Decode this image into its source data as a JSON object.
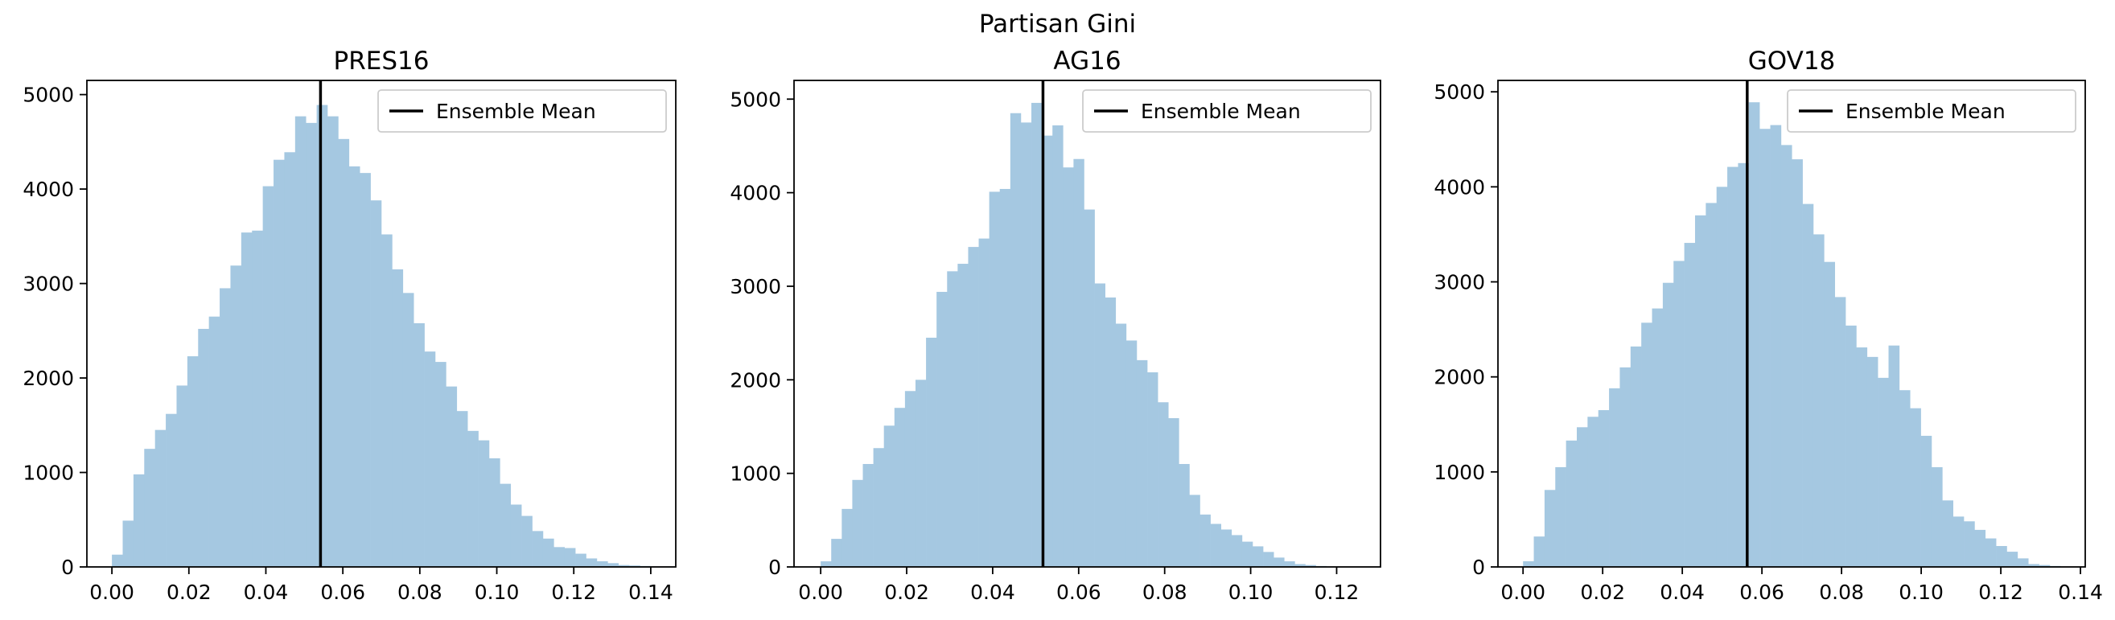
{
  "figure": {
    "suptitle": "Partisan Gini"
  },
  "chart_data": [
    {
      "type": "bar",
      "title": "PRES16",
      "xlabel": "",
      "ylabel": "",
      "xlim": [
        -0.0065,
        0.1465
      ],
      "ylim": [
        0,
        5150
      ],
      "xticks": [
        0.0,
        0.02,
        0.04,
        0.06,
        0.08,
        0.1,
        0.12,
        0.14
      ],
      "xtick_labels": [
        "0.00",
        "0.02",
        "0.04",
        "0.06",
        "0.08",
        "0.10",
        "0.12",
        "0.14"
      ],
      "yticks": [
        0,
        1000,
        2000,
        3000,
        4000,
        5000
      ],
      "ytick_labels": [
        "0",
        "1000",
        "2000",
        "3000",
        "4000",
        "5000"
      ],
      "bin_start": 0.0,
      "bin_width": 0.0028,
      "series": [
        {
          "name": "",
          "values": [
            130,
            490,
            980,
            1250,
            1450,
            1620,
            1920,
            2230,
            2520,
            2650,
            2950,
            3190,
            3540,
            3560,
            4030,
            4310,
            4390,
            4770,
            4700,
            4890,
            4770,
            4530,
            4240,
            4170,
            3880,
            3520,
            3150,
            2900,
            2580,
            2280,
            2170,
            1910,
            1650,
            1440,
            1340,
            1150,
            880,
            660,
            540,
            380,
            300,
            210,
            200,
            140,
            90,
            60,
            40,
            20,
            15,
            10,
            5,
            5
          ]
        }
      ],
      "mean_line": {
        "x": 0.0542,
        "label": "Ensemble Mean",
        "color": "#000000"
      },
      "grid": false,
      "legend": "top-right"
    },
    {
      "type": "bar",
      "title": "AG16",
      "xlabel": "",
      "ylabel": "",
      "xlim": [
        -0.0062,
        0.1302
      ],
      "ylim": [
        0,
        5200
      ],
      "xticks": [
        0.0,
        0.02,
        0.04,
        0.06,
        0.08,
        0.1,
        0.12
      ],
      "xtick_labels": [
        "0.00",
        "0.02",
        "0.04",
        "0.06",
        "0.08",
        "0.10",
        "0.12"
      ],
      "yticks": [
        0,
        1000,
        2000,
        3000,
        4000,
        5000
      ],
      "ytick_labels": [
        "0",
        "1000",
        "2000",
        "3000",
        "4000",
        "5000"
      ],
      "bin_start": 0.0,
      "bin_width": 0.00245,
      "series": [
        {
          "name": "",
          "values": [
            60,
            300,
            620,
            930,
            1100,
            1270,
            1510,
            1700,
            1880,
            2000,
            2450,
            2940,
            3160,
            3240,
            3420,
            3510,
            4010,
            4040,
            4850,
            4750,
            4960,
            4610,
            4720,
            4270,
            4360,
            3820,
            3030,
            2880,
            2600,
            2420,
            2210,
            2080,
            1760,
            1590,
            1100,
            770,
            560,
            460,
            400,
            340,
            270,
            220,
            160,
            100,
            60,
            30,
            20,
            10
          ]
        }
      ],
      "mean_line": {
        "x": 0.0517,
        "label": "Ensemble Mean",
        "color": "#000000"
      },
      "grid": false,
      "legend": "top-right"
    },
    {
      "type": "bar",
      "title": "GOV18",
      "xlabel": "",
      "ylabel": "",
      "xlim": [
        -0.0063,
        0.1412
      ],
      "ylim": [
        0,
        5120
      ],
      "xticks": [
        0.0,
        0.02,
        0.04,
        0.06,
        0.08,
        0.1,
        0.12,
        0.14
      ],
      "xtick_labels": [
        "0.00",
        "0.02",
        "0.04",
        "0.06",
        "0.08",
        "0.10",
        "0.12",
        "0.14"
      ],
      "yticks": [
        0,
        1000,
        2000,
        3000,
        4000,
        5000
      ],
      "ytick_labels": [
        "0",
        "1000",
        "2000",
        "3000",
        "4000",
        "5000"
      ],
      "bin_start": 0.0,
      "bin_width": 0.0027,
      "series": [
        {
          "name": "",
          "values": [
            60,
            320,
            810,
            1050,
            1330,
            1470,
            1580,
            1650,
            1880,
            2100,
            2320,
            2570,
            2720,
            2990,
            3220,
            3410,
            3700,
            3830,
            4000,
            4210,
            4250,
            4890,
            4610,
            4650,
            4440,
            4290,
            3820,
            3500,
            3210,
            2840,
            2540,
            2310,
            2210,
            1990,
            2330,
            1860,
            1670,
            1380,
            1050,
            700,
            530,
            480,
            390,
            300,
            220,
            160,
            90,
            30,
            20,
            10
          ]
        }
      ],
      "mean_line": {
        "x": 0.0563,
        "label": "Ensemble Mean",
        "color": "#000000"
      },
      "grid": false,
      "legend": "top-right"
    }
  ],
  "colors": {
    "bar": "#a5c8e1",
    "axis": "#000000",
    "legend_border": "#cccccc"
  }
}
